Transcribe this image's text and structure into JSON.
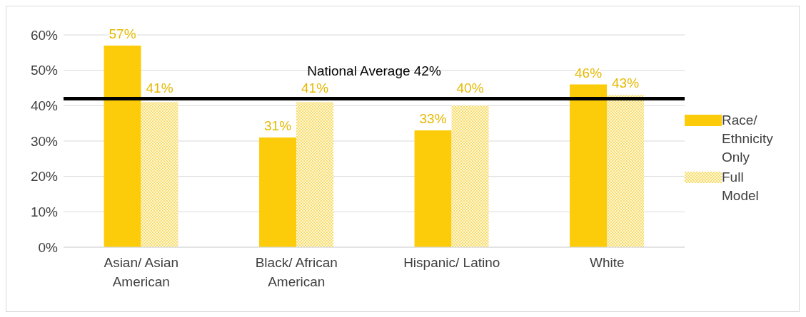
{
  "chart_data": {
    "type": "bar",
    "categories": [
      "Asian/ Asian American",
      "Black/ African American",
      "Hispanic/ Latino",
      "White"
    ],
    "series": [
      {
        "name": "Race/ Ethnicity Only",
        "color": "#fccc0a",
        "values": [
          57,
          31,
          33,
          46
        ]
      },
      {
        "name": "Full Model",
        "color": "#f7dc6f",
        "values": [
          41,
          41,
          40,
          43
        ]
      }
    ],
    "ylim": [
      0,
      60
    ],
    "yticks": [
      {
        "value": 0,
        "label": "0%"
      },
      {
        "value": 10,
        "label": "10%"
      },
      {
        "value": 20,
        "label": "20%"
      },
      {
        "value": 30,
        "label": "30%"
      },
      {
        "value": 40,
        "label": "40%"
      },
      {
        "value": 50,
        "label": "50%"
      },
      {
        "value": 60,
        "label": "60%"
      }
    ],
    "ref_lines": [
      {
        "axis": "y",
        "value": 42,
        "label": "National Average 42%",
        "color": "#000000"
      }
    ],
    "value_labels": [
      [
        "57%",
        "31%",
        "33%",
        "46%"
      ],
      [
        "41%",
        "41%",
        "40%",
        "43%"
      ]
    ],
    "grid": "y",
    "legend": "right"
  }
}
